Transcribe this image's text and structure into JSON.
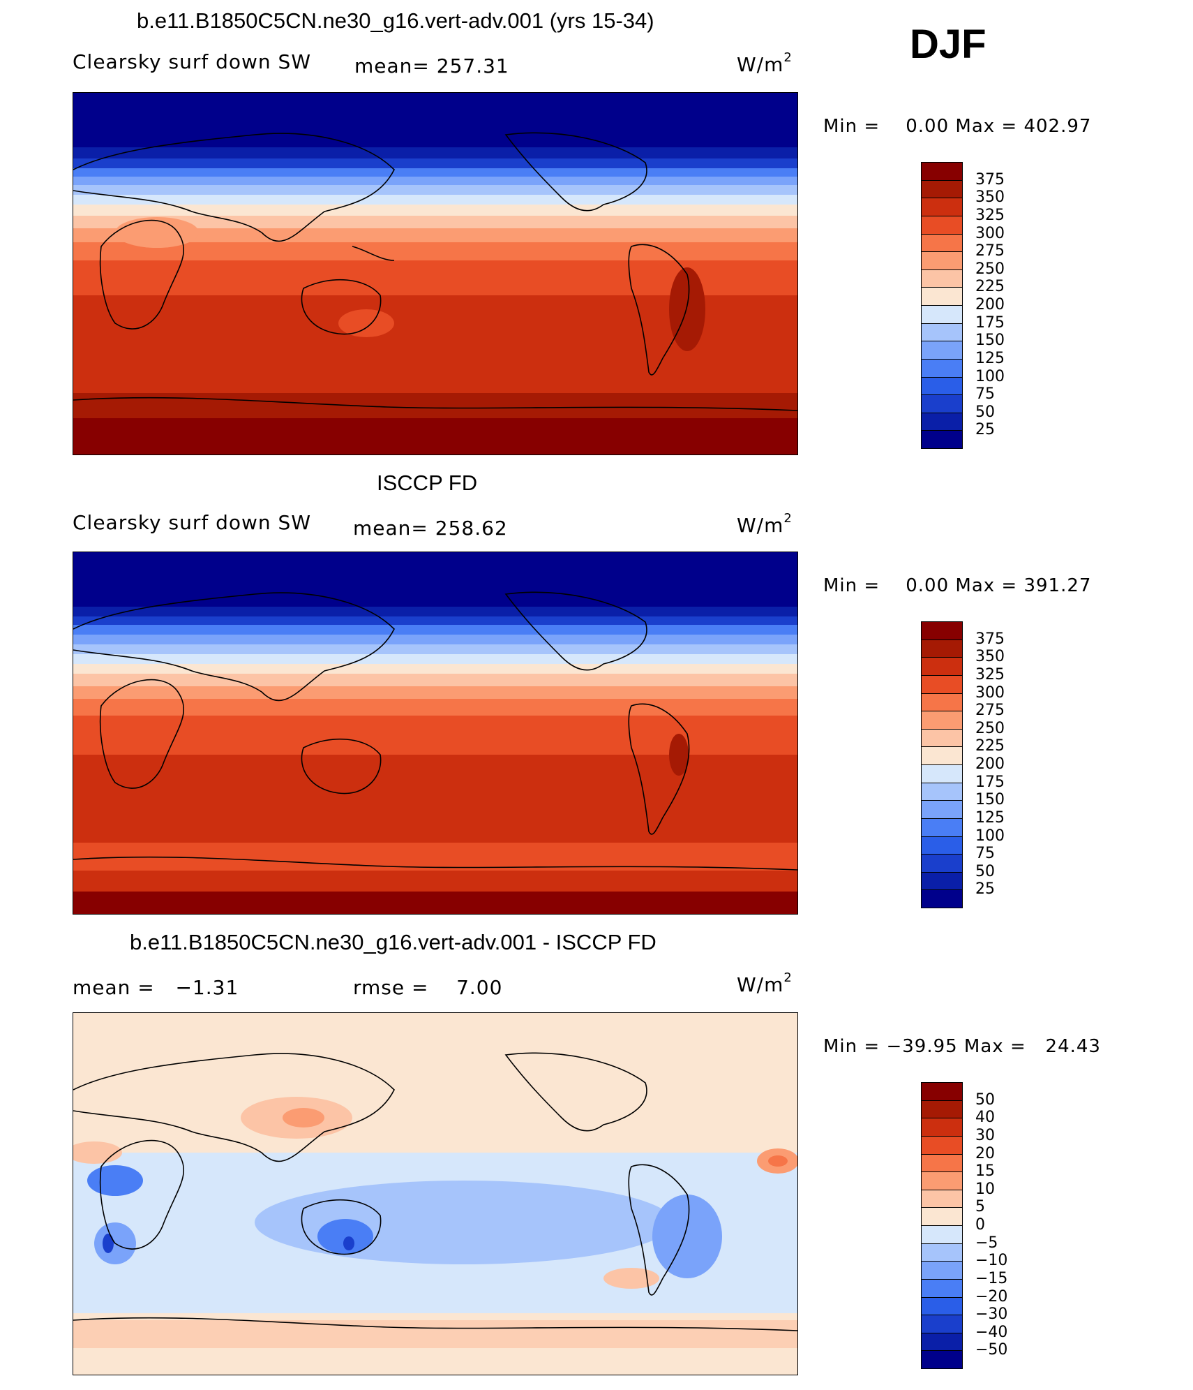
{
  "panel1": {
    "title": "b.e11.B1850C5CN.ne30_g16.vert-adv.001 (yrs 15-34)",
    "variable": "Clearsky surf down SW",
    "stat": "mean= 257.31",
    "units": "W/m",
    "units_exp": "2",
    "minmax": "Min =    0.00 Max = 402.97",
    "colorbar": [
      "375",
      "350",
      "325",
      "300",
      "275",
      "250",
      "225",
      "200",
      "175",
      "150",
      "125",
      "100",
      "75",
      "50",
      "25"
    ]
  },
  "season": "DJF",
  "panel2": {
    "title": "ISCCP FD",
    "variable": "Clearsky surf down SW",
    "stat": "mean= 258.62",
    "units": "W/m",
    "units_exp": "2",
    "minmax": "Min =    0.00 Max = 391.27",
    "colorbar": [
      "375",
      "350",
      "325",
      "300",
      "275",
      "250",
      "225",
      "200",
      "175",
      "150",
      "125",
      "100",
      "75",
      "50",
      "25"
    ]
  },
  "panel3": {
    "title": "b.e11.B1850C5CN.ne30_g16.vert-adv.001 - ISCCP FD",
    "stat_mean": "mean =   −1.31",
    "stat_rmse": "rmse =    7.00",
    "units": "W/m",
    "units_exp": "2",
    "minmax": "Min = −39.95 Max =   24.43",
    "colorbar": [
      "50",
      "40",
      "30",
      "20",
      "15",
      "10",
      "5",
      "0",
      "−5",
      "−10",
      "−15",
      "−20",
      "−30",
      "−40",
      "−50"
    ]
  },
  "colors": {
    "abs_scale": [
      "#00008b",
      "#0a1fa8",
      "#1a3fcc",
      "#2a5ee8",
      "#4a7ef5",
      "#7aa3fa",
      "#a6c4fb",
      "#d6e7fb",
      "#fbe6d2",
      "#fcc4a6",
      "#fb9c72",
      "#f67548",
      "#e84d25",
      "#cc2f0f",
      "#a51a04",
      "#870000"
    ],
    "diff_scale": [
      "#00008b",
      "#0a1fa8",
      "#1a3fcc",
      "#2a5ee8",
      "#4a7ef5",
      "#7aa3fa",
      "#a6c4fb",
      "#d6e7fb",
      "#fbe6d2",
      "#fcc4a6",
      "#fb9c72",
      "#f67548",
      "#e84d25",
      "#cc2f0f",
      "#a51a04",
      "#870000"
    ]
  }
}
